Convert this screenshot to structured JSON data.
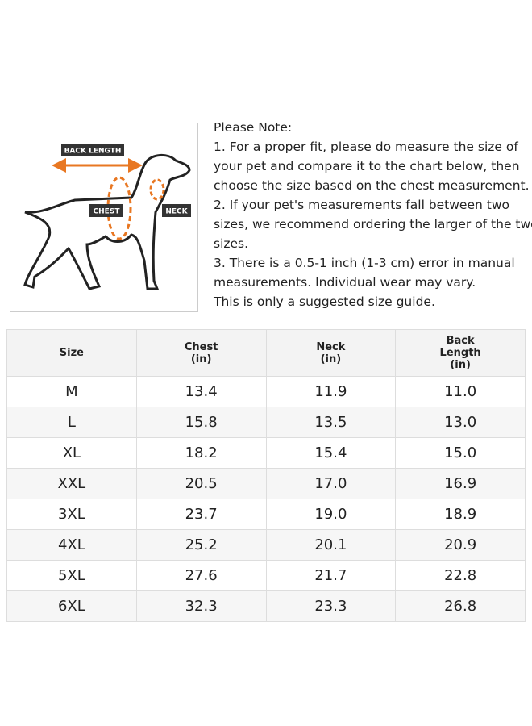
{
  "diagram": {
    "labels": {
      "back_length": "BACK LENGTH",
      "chest": "CHEST",
      "neck": "NECK"
    }
  },
  "note": {
    "lines": [
      "Please Note:",
      "1. For a proper fit, please do measure the size of",
      "your pet and compare it to the chart below, then",
      "choose the size based on the chest measurement.",
      "2. If your pet's measurements fall between two",
      "sizes, we recommend ordering the larger of the two",
      "sizes.",
      "3. There is a 0.5-1 inch (1-3 cm) error in manual",
      "measurements. Individual wear may vary.",
      "This is only a suggested size guide."
    ]
  },
  "table": {
    "header": [
      [
        "Size"
      ],
      [
        "Chest",
        "(in)"
      ],
      [
        "Neck",
        "(in)"
      ],
      [
        "Back",
        "Length",
        "(in)"
      ]
    ],
    "rows": [
      [
        "M",
        "13.4",
        "11.9",
        "11.0"
      ],
      [
        "L",
        "15.8",
        "13.5",
        "13.0"
      ],
      [
        "XL",
        "18.2",
        "15.4",
        "15.0"
      ],
      [
        "XXL",
        "20.5",
        "17.0",
        "16.9"
      ],
      [
        "3XL",
        "23.7",
        "19.0",
        "18.9"
      ],
      [
        "4XL",
        "25.2",
        "20.1",
        "20.9"
      ],
      [
        "5XL",
        "27.6",
        "21.7",
        "22.8"
      ],
      [
        "6XL",
        "32.3",
        "23.3",
        "26.8"
      ]
    ]
  }
}
